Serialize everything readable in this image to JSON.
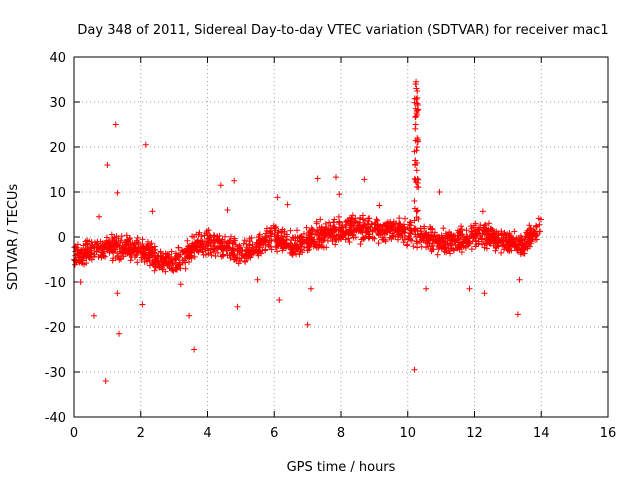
{
  "chart_data": {
    "type": "scatter",
    "title": "Day 348 of 2011, Sidereal Day-to-day VTEC variation (SDTVAR) for receiver mac1",
    "xlabel": "GPS time / hours",
    "ylabel": "SDTVAR / TECUs",
    "xlim": [
      0,
      16
    ],
    "ylim": [
      -40,
      40
    ],
    "x_ticks": [
      0,
      2,
      4,
      6,
      8,
      10,
      12,
      14,
      16
    ],
    "y_ticks": [
      -40,
      -30,
      -20,
      -10,
      0,
      10,
      20,
      30,
      40
    ],
    "grid": true,
    "marker": "+",
    "series_color": "#ff0000",
    "baseline_track": {
      "x": [
        0,
        0.5,
        1.0,
        1.5,
        2.0,
        2.5,
        3.0,
        3.5,
        4.0,
        4.5,
        5.0,
        5.5,
        6.0,
        6.5,
        7.0,
        7.5,
        8.0,
        8.5,
        9.0,
        9.5,
        10.0,
        10.5,
        11.0,
        11.5,
        12.0,
        12.5,
        13.0,
        13.5,
        14.0
      ],
      "y": [
        -4,
        -3,
        -2.5,
        -2,
        -3,
        -5,
        -6,
        -3,
        -1,
        -2,
        -4,
        -2,
        0,
        -2,
        -1,
        1,
        1.5,
        2,
        1,
        2,
        1,
        0,
        -1,
        -1,
        1,
        0,
        -1,
        -2,
        3
      ]
    },
    "outliers": [
      {
        "x": 1.25,
        "y": 25
      },
      {
        "x": 1.0,
        "y": 16
      },
      {
        "x": 2.15,
        "y": 20.5
      },
      {
        "x": 1.3,
        "y": 9.8
      },
      {
        "x": 0.6,
        "y": -17.5
      },
      {
        "x": 0.95,
        "y": -32
      },
      {
        "x": 1.35,
        "y": -21.5
      },
      {
        "x": 1.3,
        "y": -12.5
      },
      {
        "x": 2.05,
        "y": -15
      },
      {
        "x": 2.35,
        "y": 5.7
      },
      {
        "x": 3.45,
        "y": -17.5
      },
      {
        "x": 3.6,
        "y": -25
      },
      {
        "x": 4.4,
        "y": 11.5
      },
      {
        "x": 4.8,
        "y": 12.5
      },
      {
        "x": 4.9,
        "y": -15.5
      },
      {
        "x": 4.6,
        "y": 6
      },
      {
        "x": 6.15,
        "y": -14
      },
      {
        "x": 6.1,
        "y": 8.8
      },
      {
        "x": 6.4,
        "y": 7.2
      },
      {
        "x": 7.0,
        "y": -19.5
      },
      {
        "x": 7.1,
        "y": -11.5
      },
      {
        "x": 7.3,
        "y": 13
      },
      {
        "x": 7.85,
        "y": 13.3
      },
      {
        "x": 7.95,
        "y": 9.5
      },
      {
        "x": 8.7,
        "y": 12.8
      },
      {
        "x": 10.2,
        "y": -29.5
      },
      {
        "x": 10.55,
        "y": -11.5
      },
      {
        "x": 10.95,
        "y": 10
      },
      {
        "x": 11.85,
        "y": -11.5
      },
      {
        "x": 12.3,
        "y": -12.5
      },
      {
        "x": 12.25,
        "y": 5.7
      },
      {
        "x": 13.3,
        "y": -17.2
      },
      {
        "x": 13.35,
        "y": -9.5
      },
      {
        "x": 9.15,
        "y": 7
      },
      {
        "x": 5.5,
        "y": -9.5
      },
      {
        "x": 3.2,
        "y": -10.5
      },
      {
        "x": 0.2,
        "y": -10
      },
      {
        "x": 0.75,
        "y": 4.5
      }
    ],
    "spike": {
      "x": [
        10.2,
        10.22,
        10.24,
        10.25,
        10.26,
        10.27,
        10.28,
        10.3,
        10.32
      ],
      "y": [
        8,
        16,
        25,
        34.5,
        33,
        28,
        20,
        12,
        4
      ]
    }
  }
}
